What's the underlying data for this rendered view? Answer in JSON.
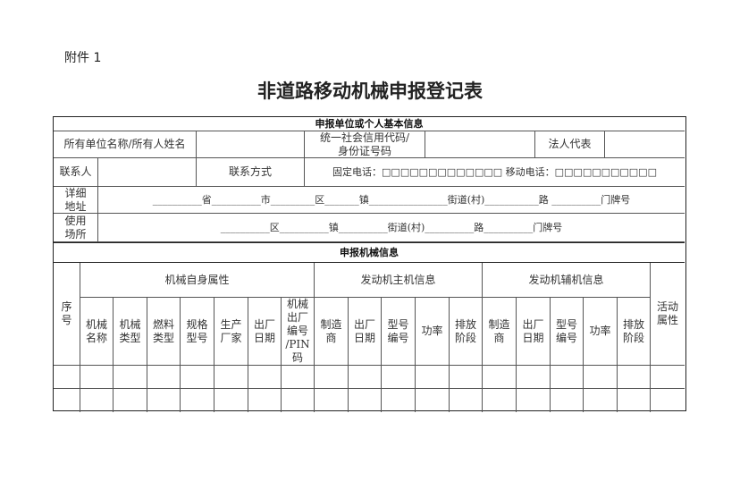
{
  "attachment": "附件 1",
  "title": "非道路移动机械申报登记表",
  "basic": {
    "header": "申报单位或个人基本信息",
    "owner_label": "所有单位名称/所有人姓名",
    "credit_label": "统一社会信用代码/\n身份证号码",
    "legal_label": "法人代表",
    "contact_label": "联系人",
    "contact_method_label": "联系方式",
    "phones": "固定电话：□□□□□□□□□□□□□   移动电话：□□□□□□□□□□□",
    "address_label": "详细\n地址",
    "address_line": "__________省__________市_________区_______镇________________街道(村)___________路    __________门牌号",
    "site_label": "使用\n场所",
    "site_line": "__________区__________镇__________街道(村)__________路__________门牌号"
  },
  "machine": {
    "header": "申报机械信息",
    "seq": "序\n号",
    "group_self": "机械自身属性",
    "group_main": "发动机主机信息",
    "group_aux": "发动机辅机信息",
    "activity": "活动\n属性",
    "columns": [
      "机械\n名称",
      "机械\n类型",
      "燃料\n类型",
      "规格\n型号",
      "生产\n厂家",
      "出厂\n日期",
      "机械\n出厂\n编号\n/PIN\n码",
      "制造\n商",
      "出厂\n日期",
      "型号\n编号",
      "功率",
      "排放\n阶段",
      "制造\n商",
      "出厂\n日期",
      "型号\n编号",
      "功率",
      "排放\n阶段"
    ]
  }
}
